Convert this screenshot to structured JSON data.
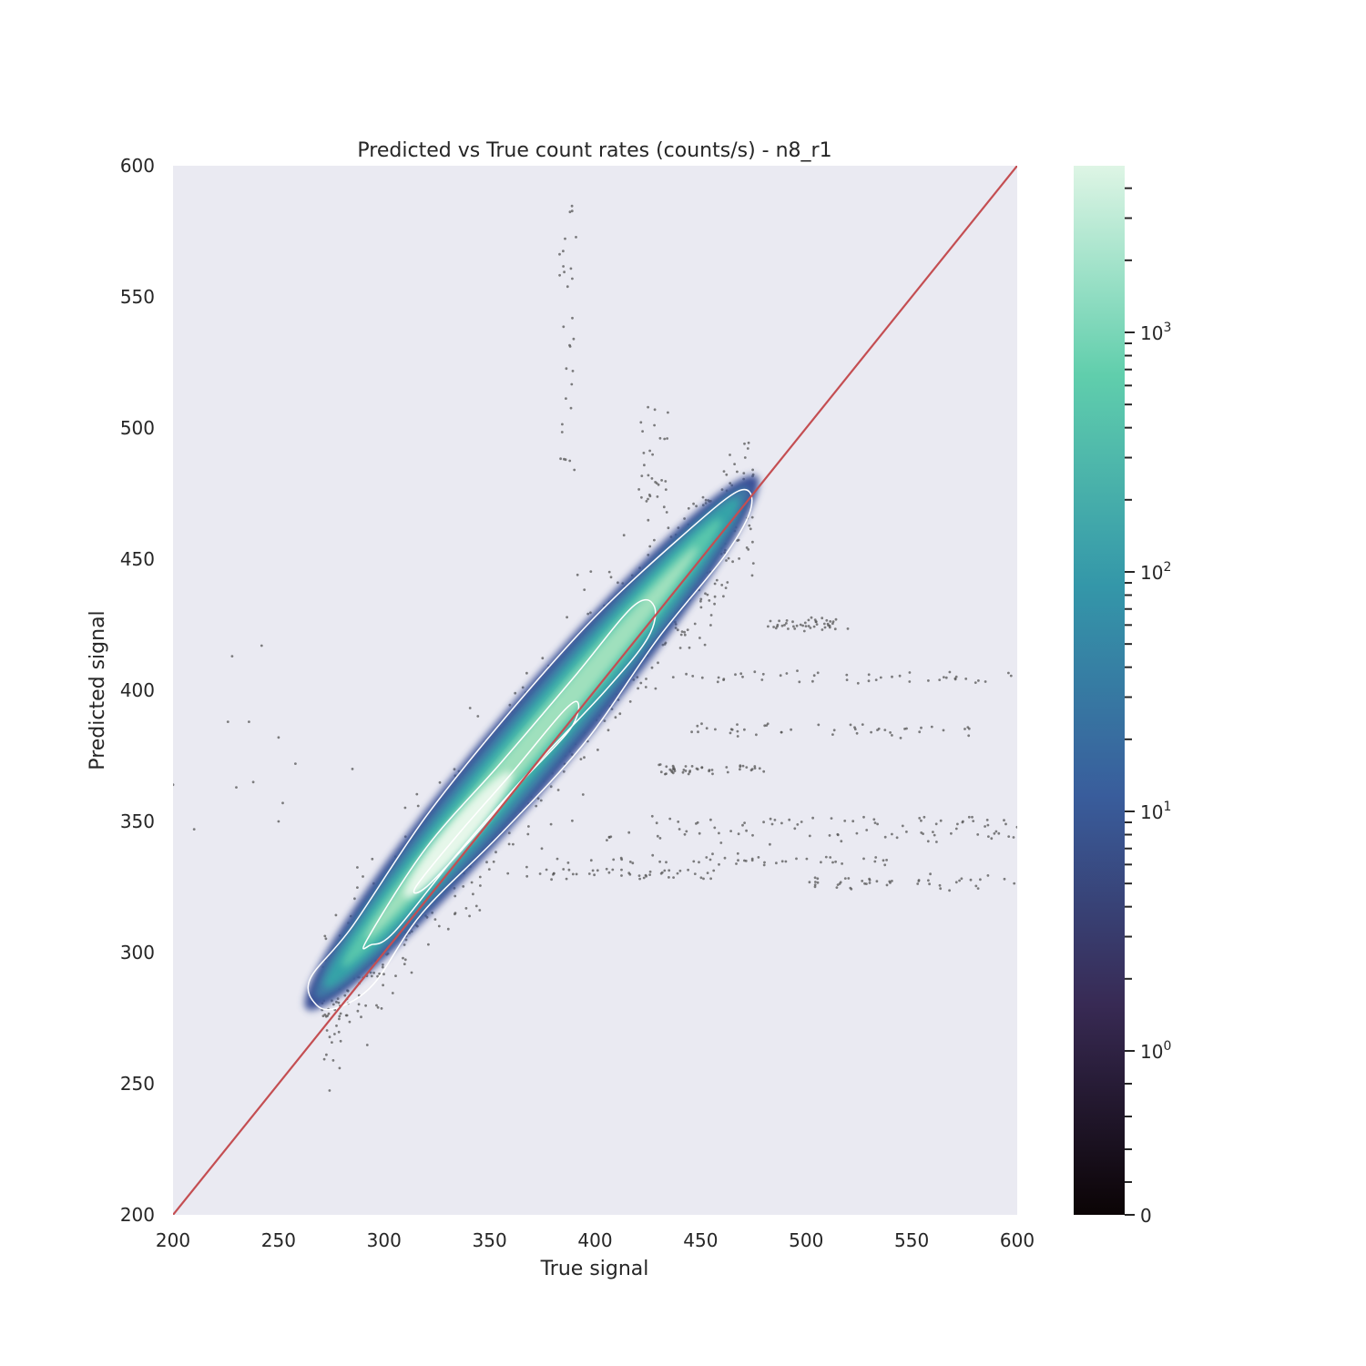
{
  "chart_data": {
    "type": "heatmap",
    "title": "Predicted vs True count rates (counts/s) - n8_r1",
    "xlabel": "True signal",
    "ylabel": "Predicted signal",
    "xlim": [
      200,
      600
    ],
    "ylim": [
      200,
      600
    ],
    "xticks": [
      "200",
      "250",
      "300",
      "350",
      "400",
      "450",
      "500",
      "550",
      "600"
    ],
    "yticks": [
      "200",
      "250",
      "300",
      "350",
      "400",
      "450",
      "500",
      "550",
      "600"
    ],
    "grid": false,
    "background_color": "#eaeaf2",
    "reference_line": {
      "x": [
        200,
        600
      ],
      "y": [
        200,
        600
      ],
      "color": "#c44e52"
    },
    "density": {
      "description": "2D histogram of counts (log color scale) concentrated along a band from about (265, 280) to (475, 480)",
      "ridge": {
        "x": [
          265,
          475
        ],
        "y": [
          280,
          480
        ]
      },
      "peak": {
        "x": 335,
        "y": 345
      }
    },
    "contours": {
      "color": "#ffffff",
      "levels": [
        {
          "points": [
            [
              265,
              290
            ],
            [
              285,
              310
            ],
            [
              320,
              352
            ],
            [
              360,
              392
            ],
            [
              400,
              428
            ],
            [
              440,
              458
            ],
            [
              468,
              476
            ],
            [
              474,
              470
            ],
            [
              462,
              452
            ],
            [
              430,
              420
            ],
            [
              395,
              380
            ],
            [
              355,
              345
            ],
            [
              318,
              315
            ],
            [
              295,
              288
            ],
            [
              278,
              279
            ],
            [
              268,
              280
            ]
          ]
        },
        {
          "points": [
            [
              292,
              305
            ],
            [
              320,
              340
            ],
            [
              355,
              372
            ],
            [
              390,
              405
            ],
            [
              418,
              432
            ],
            [
              428,
              432
            ],
            [
              425,
              420
            ],
            [
              405,
              400
            ],
            [
              370,
              370
            ],
            [
              335,
              338
            ],
            [
              305,
              308
            ],
            [
              294,
              303
            ]
          ]
        },
        {
          "points": [
            [
              315,
              325
            ],
            [
              335,
              345
            ],
            [
              360,
              368
            ],
            [
              385,
              392
            ],
            [
              392,
              395
            ],
            [
              388,
              385
            ],
            [
              365,
              365
            ],
            [
              340,
              342
            ],
            [
              320,
              325
            ]
          ]
        }
      ]
    },
    "colorbar": {
      "scale": "log",
      "tick_labels": [
        {
          "value": 0,
          "label": "0"
        },
        {
          "value": 1,
          "label": "1",
          "base": "10",
          "exponent": "0"
        },
        {
          "value": 10,
          "label": "10",
          "base": "10",
          "exponent": "1"
        },
        {
          "value": 100,
          "label": "100",
          "base": "10",
          "exponent": "2"
        },
        {
          "value": 1000,
          "label": "1000",
          "base": "10",
          "exponent": "3"
        }
      ],
      "max": 5000,
      "colors": [
        "#0b0405",
        "#382a54",
        "#395d9c",
        "#3497a9",
        "#60ceac",
        "#def5e5"
      ]
    }
  }
}
